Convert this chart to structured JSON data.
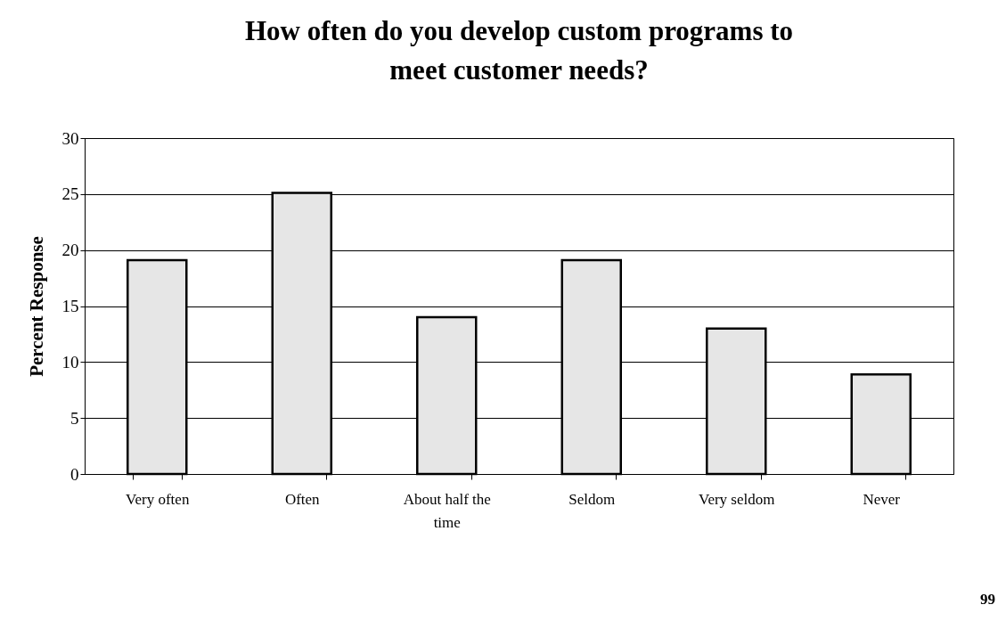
{
  "chart_data": {
    "type": "bar",
    "title": [
      "How often do you develop custom programs to",
      "meet customer needs?"
    ],
    "ylabel": "Percent Response",
    "categories": [
      "Very often",
      "Often",
      "About half the time",
      "Seldom",
      "Very seldom",
      "Never"
    ],
    "values": [
      19.1,
      25.1,
      14.0,
      19.1,
      13.0,
      8.9
    ],
    "color": "#e6e6e6",
    "ylim": [
      0,
      30
    ],
    "yticks": [
      0,
      5,
      10,
      15,
      20,
      25,
      30
    ],
    "grid": "y",
    "annotations": [
      "99"
    ]
  }
}
